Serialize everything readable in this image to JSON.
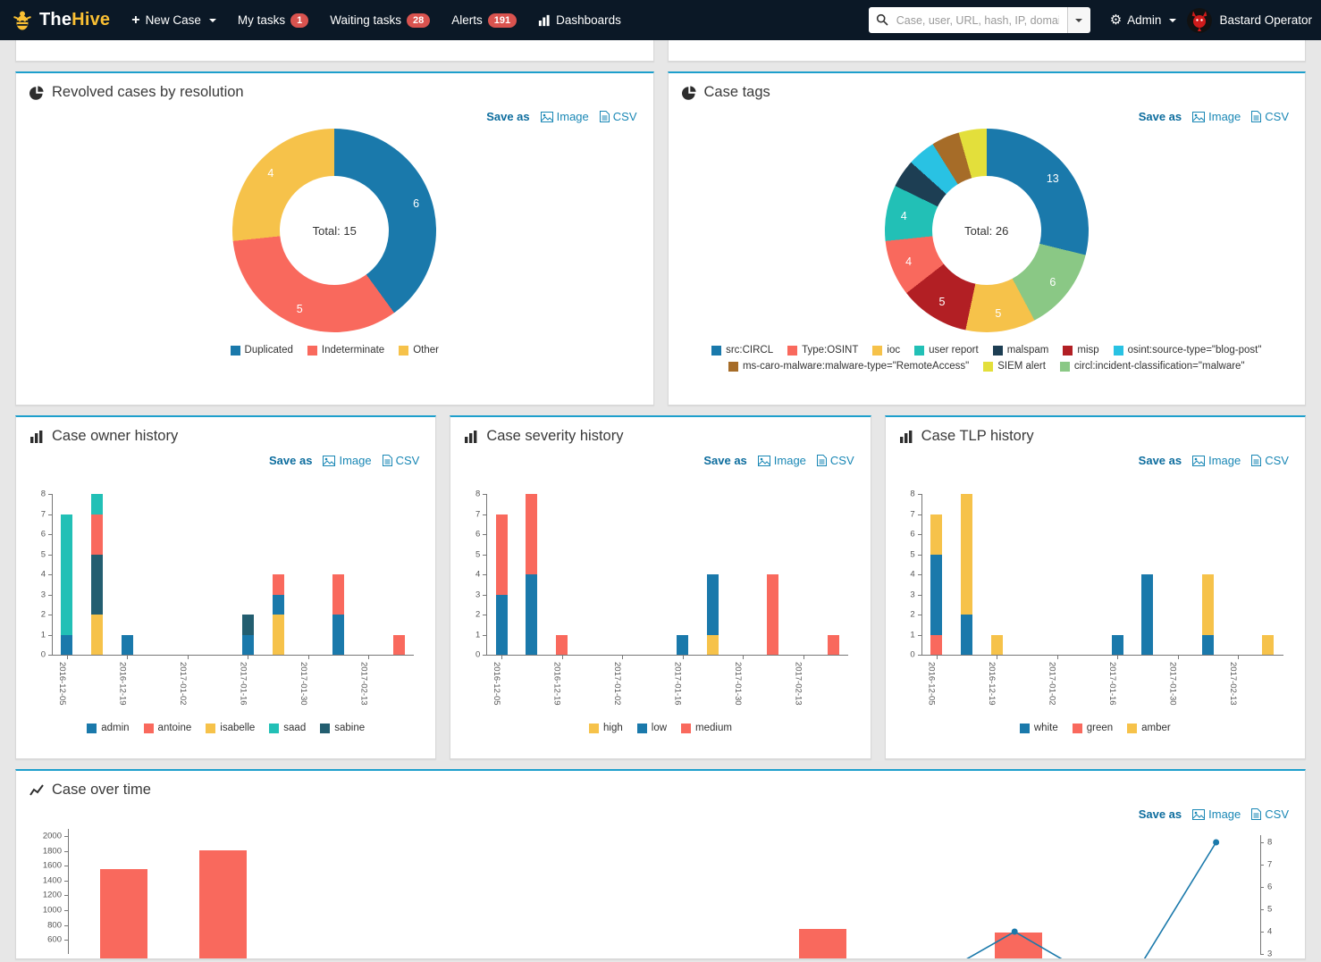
{
  "navbar": {
    "brand_the": "The",
    "brand_hive": "Hive",
    "new_case": "New Case",
    "my_tasks": "My tasks",
    "my_tasks_badge": "1",
    "waiting_tasks": "Waiting tasks",
    "waiting_badge": "28",
    "alerts": "Alerts",
    "alerts_badge": "191",
    "dashboards": "Dashboards",
    "search_placeholder": "Case, user, URL, hash, IP, domain ...",
    "admin": "Admin",
    "user": "Bastard Operator"
  },
  "export_labels": {
    "save_as": "Save as",
    "image": "Image",
    "csv": "CSV"
  },
  "colors": {
    "panel_accent": "#1d9fcc",
    "blue": "#1a79ab",
    "salmon": "#f9695d",
    "yellow": "#f6c24a",
    "teal": "#22c0b6",
    "dark_slate": "#235e70",
    "light_green": "#8ac885",
    "dark_red": "#b21f24",
    "navy": "#1d3e53",
    "cyan": "#29c2e3",
    "brown": "#a66c28",
    "lime": "#e3df3b",
    "badge_red": "#d9534f"
  },
  "chart_data": [
    {
      "id": "resolution",
      "type": "pie",
      "title": "Revolved cases by resolution",
      "total_label": "Total: 15",
      "label_radius": 96,
      "slices": [
        {
          "label": "Duplicated",
          "value": 6,
          "color": "#1a79ab"
        },
        {
          "label": "Indeterminate",
          "value": 5,
          "color": "#f9695d"
        },
        {
          "label": "Other",
          "value": 4,
          "color": "#f6c24a"
        }
      ],
      "legend_rows": [
        [
          "Duplicated",
          "Indeterminate",
          "Other"
        ]
      ]
    },
    {
      "id": "tags",
      "type": "pie",
      "title": "Case tags",
      "total_label": "Total: 26",
      "label_radius": 94,
      "slices": [
        {
          "label": "src:CIRCL",
          "value": 13,
          "color": "#1a79ab"
        },
        {
          "label": "circl:incident-classification=\"malware\"",
          "value": 6,
          "color": "#8ac885"
        },
        {
          "label": "ioc",
          "value": 5,
          "color": "#f6c24a"
        },
        {
          "label": "misp",
          "value": 5,
          "color": "#b21f24"
        },
        {
          "label": "Type:OSINT",
          "value": 4,
          "color": "#f9695d"
        },
        {
          "label": "user report",
          "value": 4,
          "color": "#22c0b6"
        },
        {
          "label": "malspam",
          "value": 2,
          "color": "#1d3e53",
          "hide_label": true
        },
        {
          "label": "osint:source-type=\"blog-post\"",
          "value": 2,
          "color": "#29c2e3",
          "hide_label": true
        },
        {
          "label": "ms-caro-malware:malware-type=\"RemoteAccess\"",
          "value": 2,
          "color": "#a66c28",
          "hide_label": true
        },
        {
          "label": "SIEM alert",
          "value": 2,
          "color": "#e3df3b",
          "hide_label": true
        }
      ],
      "legend_rows": [
        [
          "src:CIRCL",
          "Type:OSINT",
          "ioc",
          "user report",
          "malspam",
          "misp",
          "osint:source-type=\"blog-post\""
        ],
        [
          "ms-caro-malware:malware-type=\"RemoteAccess\"",
          "SIEM alert",
          "circl:incident-classification=\"malware\""
        ]
      ]
    },
    {
      "id": "owner",
      "type": "bar",
      "stacked": true,
      "title": "Case owner history",
      "ylim": [
        0,
        8
      ],
      "yticks": [
        0,
        1,
        2,
        3,
        4,
        5,
        6,
        7,
        8
      ],
      "weeks": 12,
      "xticks": [
        {
          "week": 0,
          "label": "2016-12-05"
        },
        {
          "week": 2,
          "label": "2016-12-19"
        },
        {
          "week": 4,
          "label": "2017-01-02"
        },
        {
          "week": 6,
          "label": "2017-01-16"
        },
        {
          "week": 8,
          "label": "2017-01-30"
        },
        {
          "week": 10,
          "label": "2017-02-13"
        }
      ],
      "series": [
        {
          "name": "admin",
          "color": "#1a79ab"
        },
        {
          "name": "antoine",
          "color": "#f9695d"
        },
        {
          "name": "isabelle",
          "color": "#f6c24a"
        },
        {
          "name": "saad",
          "color": "#22c0b6"
        },
        {
          "name": "sabine",
          "color": "#235e70"
        }
      ],
      "bars": [
        {
          "week": 0,
          "segments": [
            {
              "s": "admin",
              "v": 1
            },
            {
              "s": "saad",
              "v": 6
            }
          ]
        },
        {
          "week": 1,
          "segments": [
            {
              "s": "isabelle",
              "v": 2
            },
            {
              "s": "sabine",
              "v": 3
            },
            {
              "s": "antoine",
              "v": 2
            },
            {
              "s": "saad",
              "v": 1
            }
          ]
        },
        {
          "week": 2,
          "segments": [
            {
              "s": "admin",
              "v": 1
            }
          ]
        },
        {
          "week": 6,
          "segments": [
            {
              "s": "admin",
              "v": 1
            },
            {
              "s": "sabine",
              "v": 1
            }
          ]
        },
        {
          "week": 7,
          "segments": [
            {
              "s": "isabelle",
              "v": 2
            },
            {
              "s": "admin",
              "v": 1
            },
            {
              "s": "antoine",
              "v": 1
            }
          ]
        },
        {
          "week": 9,
          "segments": [
            {
              "s": "admin",
              "v": 2
            },
            {
              "s": "antoine",
              "v": 2
            }
          ]
        },
        {
          "week": 11,
          "segments": [
            {
              "s": "antoine",
              "v": 1
            }
          ]
        }
      ]
    },
    {
      "id": "severity",
      "type": "bar",
      "stacked": true,
      "title": "Case severity history",
      "ylim": [
        0,
        8
      ],
      "yticks": [
        0,
        1,
        2,
        3,
        4,
        5,
        6,
        7,
        8
      ],
      "weeks": 12,
      "xticks": [
        {
          "week": 0,
          "label": "2016-12-05"
        },
        {
          "week": 2,
          "label": "2016-12-19"
        },
        {
          "week": 4,
          "label": "2017-01-02"
        },
        {
          "week": 6,
          "label": "2017-01-16"
        },
        {
          "week": 8,
          "label": "2017-01-30"
        },
        {
          "week": 10,
          "label": "2017-02-13"
        }
      ],
      "series": [
        {
          "name": "high",
          "color": "#f6c24a"
        },
        {
          "name": "low",
          "color": "#1a79ab"
        },
        {
          "name": "medium",
          "color": "#f9695d"
        }
      ],
      "bars": [
        {
          "week": 0,
          "segments": [
            {
              "s": "low",
              "v": 3
            },
            {
              "s": "medium",
              "v": 4
            }
          ]
        },
        {
          "week": 1,
          "segments": [
            {
              "s": "low",
              "v": 4
            },
            {
              "s": "medium",
              "v": 4
            }
          ]
        },
        {
          "week": 2,
          "segments": [
            {
              "s": "medium",
              "v": 1
            }
          ]
        },
        {
          "week": 6,
          "segments": [
            {
              "s": "low",
              "v": 1
            }
          ]
        },
        {
          "week": 7,
          "segments": [
            {
              "s": "high",
              "v": 1
            },
            {
              "s": "low",
              "v": 3
            }
          ]
        },
        {
          "week": 9,
          "segments": [
            {
              "s": "medium",
              "v": 4
            }
          ]
        },
        {
          "week": 11,
          "segments": [
            {
              "s": "medium",
              "v": 1
            }
          ]
        }
      ]
    },
    {
      "id": "tlp",
      "type": "bar",
      "stacked": true,
      "title": "Case TLP history",
      "ylim": [
        0,
        8
      ],
      "yticks": [
        0,
        1,
        2,
        3,
        4,
        5,
        6,
        7,
        8
      ],
      "weeks": 12,
      "xticks": [
        {
          "week": 0,
          "label": "2016-12-05"
        },
        {
          "week": 2,
          "label": "2016-12-19"
        },
        {
          "week": 4,
          "label": "2017-01-02"
        },
        {
          "week": 6,
          "label": "2017-01-16"
        },
        {
          "week": 8,
          "label": "2017-01-30"
        },
        {
          "week": 10,
          "label": "2017-02-13"
        }
      ],
      "series": [
        {
          "name": "white",
          "color": "#1a79ab"
        },
        {
          "name": "green",
          "color": "#f9695d"
        },
        {
          "name": "amber",
          "color": "#f6c24a"
        }
      ],
      "bars": [
        {
          "week": 0,
          "segments": [
            {
              "s": "green",
              "v": 1
            },
            {
              "s": "white",
              "v": 4
            },
            {
              "s": "amber",
              "v": 2
            }
          ]
        },
        {
          "week": 1,
          "segments": [
            {
              "s": "white",
              "v": 2
            },
            {
              "s": "amber",
              "v": 6
            }
          ]
        },
        {
          "week": 2,
          "segments": [
            {
              "s": "amber",
              "v": 1
            }
          ]
        },
        {
          "week": 6,
          "segments": [
            {
              "s": "white",
              "v": 1
            }
          ]
        },
        {
          "week": 7,
          "segments": [
            {
              "s": "white",
              "v": 4
            }
          ]
        },
        {
          "week": 9,
          "segments": [
            {
              "s": "white",
              "v": 1
            },
            {
              "s": "amber",
              "v": 3
            }
          ]
        },
        {
          "week": 11,
          "segments": [
            {
              "s": "amber",
              "v": 1
            }
          ]
        }
      ]
    },
    {
      "id": "overtime",
      "type": "bar+line",
      "title": "Case over time",
      "left_axis": {
        "ticks": [
          2000,
          1800,
          1600,
          1400,
          1200,
          1000,
          800,
          600
        ]
      },
      "right_axis": {
        "ticks": [
          8,
          7,
          6,
          5,
          4,
          3
        ]
      },
      "bars": {
        "color": "#f9695d",
        "width": 53,
        "points": [
          {
            "x": 0.047,
            "value": 1550
          },
          {
            "x": 0.13,
            "value": 1810
          },
          {
            "x": 0.633,
            "value": 750
          },
          {
            "x": 0.797,
            "value": 700
          }
        ]
      },
      "line": {
        "color": "#1a79ab",
        "segments": [
          [
            {
              "x": 0.735,
              "value": 2.2
            },
            {
              "x": 0.794,
              "value": 4,
              "marker": true
            },
            {
              "x": 0.852,
              "value": 2.2
            }
          ],
          [
            {
              "x": 0.887,
              "value": 1.4
            },
            {
              "x": 0.963,
              "value": 8,
              "marker": true
            }
          ]
        ]
      }
    }
  ]
}
